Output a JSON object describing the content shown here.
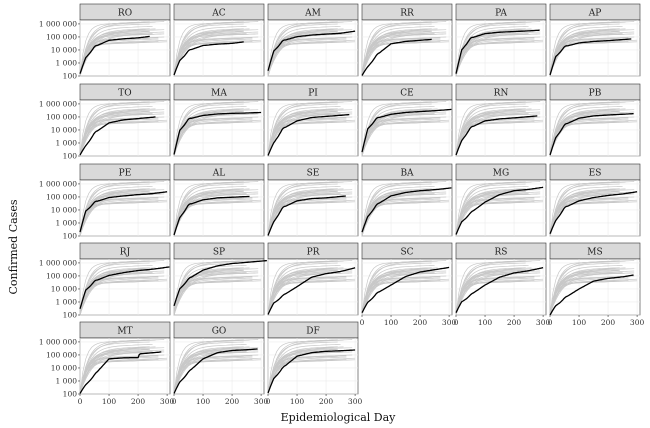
{
  "chart_data": {
    "type": "line",
    "xlabel": "Epidemiological Day",
    "ylabel": "Confirmed Cases",
    "x_scale": "linear",
    "y_scale": "log",
    "xlim": [
      0,
      310
    ],
    "ylim": [
      100,
      2000000
    ],
    "x_ticks": [
      0,
      100,
      200,
      300
    ],
    "y_ticks": [
      100,
      1000,
      10000,
      100000,
      1000000
    ],
    "x_tick_labels": [
      "0",
      "100",
      "200",
      "300"
    ],
    "y_tick_labels": [
      "100",
      "1 000",
      "10 000",
      "100 000",
      "1 000 000"
    ],
    "grid": true,
    "background_series_color": "#c8c8c8",
    "highlight_series_color": "#000000",
    "panels": [
      {
        "state": "RO",
        "row": 0,
        "col": 0,
        "xlabels": false,
        "ylabels": true,
        "x_end": 240,
        "values": [
          [
            0,
            150
          ],
          [
            20,
            2500
          ],
          [
            50,
            18000
          ],
          [
            100,
            55000
          ],
          [
            150,
            72000
          ],
          [
            200,
            85000
          ],
          [
            240,
            110000
          ]
        ]
      },
      {
        "state": "AC",
        "row": 0,
        "col": 1,
        "xlabels": false,
        "ylabels": false,
        "x_end": 240,
        "values": [
          [
            0,
            120
          ],
          [
            20,
            1500
          ],
          [
            50,
            9000
          ],
          [
            100,
            22000
          ],
          [
            150,
            28000
          ],
          [
            200,
            32000
          ],
          [
            240,
            42000
          ]
        ]
      },
      {
        "state": "AM",
        "row": 0,
        "col": 2,
        "xlabels": false,
        "ylabels": false,
        "x_end": 300,
        "values": [
          [
            0,
            250
          ],
          [
            20,
            8000
          ],
          [
            50,
            50000
          ],
          [
            100,
            105000
          ],
          [
            150,
            140000
          ],
          [
            200,
            165000
          ],
          [
            250,
            190000
          ],
          [
            300,
            280000
          ]
        ]
      },
      {
        "state": "RR",
        "row": 0,
        "col": 3,
        "xlabels": false,
        "ylabels": false,
        "x_end": 240,
        "values": [
          [
            0,
            110
          ],
          [
            20,
            500
          ],
          [
            50,
            4000
          ],
          [
            100,
            30000
          ],
          [
            150,
            45000
          ],
          [
            200,
            55000
          ],
          [
            240,
            65000
          ]
        ]
      },
      {
        "state": "PA",
        "row": 0,
        "col": 4,
        "xlabels": false,
        "ylabels": false,
        "x_end": 290,
        "values": [
          [
            0,
            150
          ],
          [
            20,
            10000
          ],
          [
            50,
            80000
          ],
          [
            100,
            180000
          ],
          [
            150,
            230000
          ],
          [
            200,
            260000
          ],
          [
            250,
            290000
          ],
          [
            290,
            330000
          ]
        ]
      },
      {
        "state": "AP",
        "row": 0,
        "col": 5,
        "xlabels": false,
        "ylabels": false,
        "x_end": 280,
        "values": [
          [
            0,
            120
          ],
          [
            20,
            3000
          ],
          [
            50,
            18000
          ],
          [
            100,
            35000
          ],
          [
            150,
            45000
          ],
          [
            200,
            52000
          ],
          [
            280,
            70000
          ]
        ]
      },
      {
        "state": "TO",
        "row": 1,
        "col": 0,
        "xlabels": false,
        "ylabels": true,
        "x_end": 260,
        "values": [
          [
            0,
            120
          ],
          [
            20,
            600
          ],
          [
            50,
            6000
          ],
          [
            100,
            35000
          ],
          [
            150,
            60000
          ],
          [
            200,
            75000
          ],
          [
            260,
            100000
          ]
        ]
      },
      {
        "state": "MA",
        "row": 1,
        "col": 1,
        "xlabels": false,
        "ylabels": false,
        "x_end": 300,
        "values": [
          [
            0,
            130
          ],
          [
            20,
            9000
          ],
          [
            50,
            70000
          ],
          [
            100,
            130000
          ],
          [
            150,
            170000
          ],
          [
            200,
            190000
          ],
          [
            250,
            200000
          ],
          [
            300,
            220000
          ]
        ]
      },
      {
        "state": "PI",
        "row": 1,
        "col": 2,
        "xlabels": false,
        "ylabels": false,
        "x_end": 280,
        "values": [
          [
            0,
            110
          ],
          [
            20,
            1000
          ],
          [
            50,
            12000
          ],
          [
            100,
            50000
          ],
          [
            150,
            90000
          ],
          [
            200,
            110000
          ],
          [
            280,
            150000
          ]
        ]
      },
      {
        "state": "CE",
        "row": 1,
        "col": 3,
        "xlabels": false,
        "ylabels": false,
        "x_end": 310,
        "values": [
          [
            0,
            200
          ],
          [
            20,
            12000
          ],
          [
            50,
            80000
          ],
          [
            100,
            160000
          ],
          [
            150,
            220000
          ],
          [
            200,
            260000
          ],
          [
            250,
            300000
          ],
          [
            310,
            380000
          ]
        ]
      },
      {
        "state": "RN",
        "row": 1,
        "col": 4,
        "xlabels": false,
        "ylabels": false,
        "x_end": 280,
        "values": [
          [
            0,
            120
          ],
          [
            20,
            1500
          ],
          [
            50,
            15000
          ],
          [
            100,
            50000
          ],
          [
            150,
            70000
          ],
          [
            200,
            85000
          ],
          [
            280,
            120000
          ]
        ]
      },
      {
        "state": "PB",
        "row": 1,
        "col": 5,
        "xlabels": false,
        "ylabels": false,
        "x_end": 290,
        "values": [
          [
            0,
            120
          ],
          [
            20,
            2500
          ],
          [
            50,
            25000
          ],
          [
            100,
            80000
          ],
          [
            150,
            120000
          ],
          [
            200,
            140000
          ],
          [
            290,
            180000
          ]
        ]
      },
      {
        "state": "PE",
        "row": 2,
        "col": 0,
        "xlabels": false,
        "ylabels": true,
        "x_end": 300,
        "values": [
          [
            0,
            200
          ],
          [
            20,
            8000
          ],
          [
            50,
            40000
          ],
          [
            100,
            90000
          ],
          [
            150,
            120000
          ],
          [
            200,
            150000
          ],
          [
            250,
            180000
          ],
          [
            300,
            250000
          ]
        ]
      },
      {
        "state": "AL",
        "row": 2,
        "col": 1,
        "xlabels": false,
        "ylabels": false,
        "x_end": 260,
        "values": [
          [
            0,
            120
          ],
          [
            20,
            2500
          ],
          [
            50,
            25000
          ],
          [
            100,
            60000
          ],
          [
            150,
            85000
          ],
          [
            200,
            95000
          ],
          [
            260,
            110000
          ]
        ]
      },
      {
        "state": "SE",
        "row": 2,
        "col": 2,
        "xlabels": false,
        "ylabels": false,
        "x_end": 270,
        "values": [
          [
            0,
            110
          ],
          [
            20,
            1200
          ],
          [
            50,
            15000
          ],
          [
            100,
            50000
          ],
          [
            150,
            75000
          ],
          [
            200,
            85000
          ],
          [
            270,
            120000
          ]
        ]
      },
      {
        "state": "BA",
        "row": 2,
        "col": 3,
        "xlabels": false,
        "ylabels": false,
        "x_end": 310,
        "values": [
          [
            0,
            200
          ],
          [
            20,
            3000
          ],
          [
            50,
            25000
          ],
          [
            100,
            120000
          ],
          [
            150,
            220000
          ],
          [
            200,
            300000
          ],
          [
            250,
            360000
          ],
          [
            310,
            500000
          ]
        ]
      },
      {
        "state": "MG",
        "row": 2,
        "col": 4,
        "xlabels": false,
        "ylabels": false,
        "x_end": 300,
        "values": [
          [
            0,
            130
          ],
          [
            20,
            1200
          ],
          [
            50,
            6000
          ],
          [
            100,
            40000
          ],
          [
            150,
            150000
          ],
          [
            200,
            300000
          ],
          [
            250,
            380000
          ],
          [
            300,
            550000
          ]
        ]
      },
      {
        "state": "ES",
        "row": 2,
        "col": 5,
        "xlabels": false,
        "ylabels": false,
        "x_end": 300,
        "values": [
          [
            0,
            150
          ],
          [
            20,
            1500
          ],
          [
            50,
            15000
          ],
          [
            100,
            50000
          ],
          [
            150,
            90000
          ],
          [
            200,
            130000
          ],
          [
            250,
            170000
          ],
          [
            300,
            250000
          ]
        ]
      },
      {
        "state": "RJ",
        "row": 3,
        "col": 0,
        "xlabels": false,
        "ylabels": true,
        "x_end": 310,
        "values": [
          [
            0,
            300
          ],
          [
            20,
            8000
          ],
          [
            50,
            40000
          ],
          [
            100,
            110000
          ],
          [
            150,
            180000
          ],
          [
            200,
            260000
          ],
          [
            250,
            330000
          ],
          [
            310,
            500000
          ]
        ]
      },
      {
        "state": "SP",
        "row": 3,
        "col": 1,
        "xlabels": false,
        "ylabels": false,
        "x_end": 320,
        "values": [
          [
            0,
            500
          ],
          [
            20,
            10000
          ],
          [
            50,
            60000
          ],
          [
            100,
            280000
          ],
          [
            150,
            600000
          ],
          [
            200,
            900000
          ],
          [
            250,
            1100000
          ],
          [
            320,
            1500000
          ]
        ]
      },
      {
        "state": "PR",
        "row": 3,
        "col": 2,
        "xlabels": false,
        "ylabels": false,
        "x_end": 300,
        "values": [
          [
            0,
            110
          ],
          [
            20,
            800
          ],
          [
            50,
            3000
          ],
          [
            100,
            15000
          ],
          [
            150,
            80000
          ],
          [
            200,
            150000
          ],
          [
            250,
            220000
          ],
          [
            300,
            420000
          ]
        ]
      },
      {
        "state": "SC",
        "row": 3,
        "col": 3,
        "xlabels": true,
        "ylabels": false,
        "x_end": 300,
        "values": [
          [
            0,
            150
          ],
          [
            20,
            900
          ],
          [
            50,
            4500
          ],
          [
            100,
            20000
          ],
          [
            150,
            90000
          ],
          [
            200,
            200000
          ],
          [
            250,
            300000
          ],
          [
            300,
            450000
          ]
        ]
      },
      {
        "state": "RS",
        "row": 3,
        "col": 4,
        "xlabels": true,
        "ylabels": false,
        "x_end": 300,
        "values": [
          [
            0,
            150
          ],
          [
            20,
            1000
          ],
          [
            50,
            3500
          ],
          [
            100,
            20000
          ],
          [
            150,
            80000
          ],
          [
            200,
            170000
          ],
          [
            250,
            250000
          ],
          [
            300,
            430000
          ]
        ]
      },
      {
        "state": "MS",
        "row": 3,
        "col": 5,
        "xlabels": true,
        "ylabels": false,
        "x_end": 290,
        "values": [
          [
            0,
            100
          ],
          [
            20,
            500
          ],
          [
            50,
            2000
          ],
          [
            100,
            10000
          ],
          [
            150,
            40000
          ],
          [
            200,
            65000
          ],
          [
            250,
            85000
          ],
          [
            290,
            120000
          ]
        ]
      },
      {
        "state": "MT",
        "row": 4,
        "col": 0,
        "xlabels": true,
        "ylabels": true,
        "x_end": 280,
        "values": [
          [
            0,
            110
          ],
          [
            20,
            500
          ],
          [
            50,
            3000
          ],
          [
            100,
            50000
          ],
          [
            150,
            60000
          ],
          [
            200,
            62000
          ],
          [
            205,
            120000
          ],
          [
            240,
            140000
          ],
          [
            280,
            170000
          ]
        ]
      },
      {
        "state": "GO",
        "row": 4,
        "col": 1,
        "xlabels": true,
        "ylabels": false,
        "x_end": 290,
        "values": [
          [
            0,
            110
          ],
          [
            20,
            800
          ],
          [
            50,
            5000
          ],
          [
            100,
            50000
          ],
          [
            150,
            150000
          ],
          [
            200,
            220000
          ],
          [
            250,
            250000
          ],
          [
            290,
            290000
          ]
        ]
      },
      {
        "state": "DF",
        "row": 4,
        "col": 2,
        "xlabels": true,
        "ylabels": false,
        "x_end": 300,
        "values": [
          [
            0,
            120
          ],
          [
            20,
            1500
          ],
          [
            50,
            10000
          ],
          [
            100,
            80000
          ],
          [
            150,
            150000
          ],
          [
            200,
            190000
          ],
          [
            250,
            210000
          ],
          [
            300,
            240000
          ]
        ]
      }
    ]
  }
}
